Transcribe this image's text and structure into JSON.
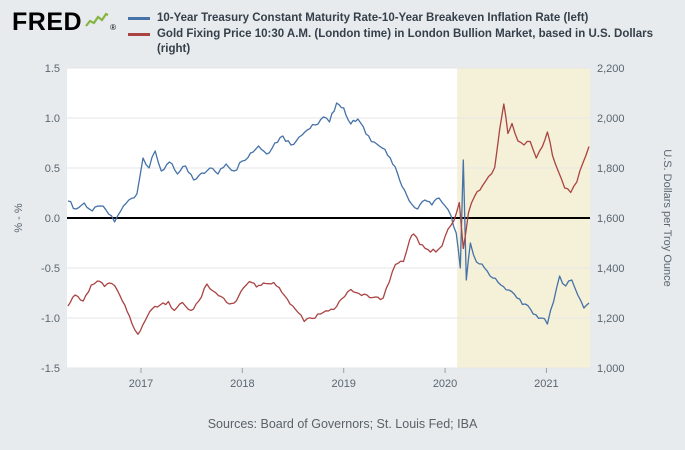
{
  "header": {
    "logo_text": "FRED",
    "registered_mark": "®"
  },
  "footer": {
    "sources": "Sources: Board of Governors; St. Louis Fed; IBA"
  },
  "chart_data": {
    "type": "line",
    "x_range": [
      2016.27,
      2021.43
    ],
    "x_ticks": {
      "values": [
        2017,
        2018,
        2019,
        2020,
        2021
      ],
      "labels": [
        "2017",
        "2018",
        "2019",
        "2020",
        "2021"
      ]
    },
    "left_axis": {
      "label": "% - %",
      "min": -1.5,
      "max": 1.5,
      "tick_values": [
        1.5,
        1.0,
        0.5,
        0.0,
        -0.5,
        -1.0,
        -1.5
      ],
      "tick_labels": [
        "1.5",
        "1.0",
        "0.5",
        "0.0",
        "-0.5",
        "-1.0",
        "-1.5"
      ]
    },
    "right_axis": {
      "label": "U.S. Dollars per Troy Ounce",
      "min": 1000,
      "max": 2200,
      "tick_values": [
        2200,
        2000,
        1800,
        1600,
        1400,
        1200,
        1000
      ],
      "tick_labels": [
        "2,200",
        "2,000",
        "1,800",
        "1,600",
        "1,400",
        "1,200",
        "1,000"
      ]
    },
    "grid": true,
    "legend_position": "top",
    "zero_line": {
      "value": 0
    },
    "highlight_region": {
      "x_start": 2020.12,
      "x_end": 2021.43,
      "color": "#f5f0d8"
    },
    "colors": {
      "page_bg": "#e7ebee",
      "plot_bg": "#ffffff",
      "grid": "#e6e6e6",
      "zero_line": "#000000"
    },
    "series": [
      {
        "id": "treasury-breakeven-spread",
        "name": "10-Year Treasury Constant Maturity Rate-10-Year Breakeven Inflation Rate (left)",
        "axis": "left",
        "color": "#4572a7",
        "points": [
          [
            2016.28,
            0.17
          ],
          [
            2016.36,
            0.09
          ],
          [
            2016.44,
            0.15
          ],
          [
            2016.52,
            0.07
          ],
          [
            2016.6,
            0.12
          ],
          [
            2016.68,
            0.04
          ],
          [
            2016.74,
            -0.04
          ],
          [
            2016.8,
            0.07
          ],
          [
            2016.88,
            0.18
          ],
          [
            2016.96,
            0.24
          ],
          [
            2017.02,
            0.6
          ],
          [
            2017.08,
            0.5
          ],
          [
            2017.14,
            0.67
          ],
          [
            2017.2,
            0.47
          ],
          [
            2017.28,
            0.56
          ],
          [
            2017.36,
            0.44
          ],
          [
            2017.44,
            0.52
          ],
          [
            2017.52,
            0.38
          ],
          [
            2017.6,
            0.45
          ],
          [
            2017.68,
            0.5
          ],
          [
            2017.76,
            0.44
          ],
          [
            2017.84,
            0.54
          ],
          [
            2017.92,
            0.47
          ],
          [
            2018.0,
            0.57
          ],
          [
            2018.08,
            0.65
          ],
          [
            2018.16,
            0.72
          ],
          [
            2018.24,
            0.64
          ],
          [
            2018.32,
            0.75
          ],
          [
            2018.4,
            0.82
          ],
          [
            2018.48,
            0.73
          ],
          [
            2018.56,
            0.81
          ],
          [
            2018.64,
            0.88
          ],
          [
            2018.72,
            0.93
          ],
          [
            2018.8,
            1.01
          ],
          [
            2018.86,
            0.96
          ],
          [
            2018.93,
            1.15
          ],
          [
            2019.0,
            1.1
          ],
          [
            2019.07,
            0.94
          ],
          [
            2019.14,
            0.99
          ],
          [
            2019.22,
            0.84
          ],
          [
            2019.3,
            0.76
          ],
          [
            2019.38,
            0.7
          ],
          [
            2019.46,
            0.6
          ],
          [
            2019.53,
            0.45
          ],
          [
            2019.6,
            0.28
          ],
          [
            2019.67,
            0.14
          ],
          [
            2019.73,
            0.09
          ],
          [
            2019.8,
            0.18
          ],
          [
            2019.87,
            0.13
          ],
          [
            2019.94,
            0.2
          ],
          [
            2020.0,
            0.12
          ],
          [
            2020.06,
            0.02
          ],
          [
            2020.11,
            -0.15
          ],
          [
            2020.15,
            -0.5
          ],
          [
            2020.18,
            0.58
          ],
          [
            2020.21,
            -0.62
          ],
          [
            2020.25,
            -0.25
          ],
          [
            2020.31,
            -0.44
          ],
          [
            2020.39,
            -0.5
          ],
          [
            2020.47,
            -0.6
          ],
          [
            2020.55,
            -0.67
          ],
          [
            2020.63,
            -0.72
          ],
          [
            2020.71,
            -0.8
          ],
          [
            2020.79,
            -0.86
          ],
          [
            2020.87,
            -0.96
          ],
          [
            2020.95,
            -1.0
          ],
          [
            2021.01,
            -1.06
          ],
          [
            2021.07,
            -0.84
          ],
          [
            2021.13,
            -0.58
          ],
          [
            2021.19,
            -0.68
          ],
          [
            2021.25,
            -0.62
          ],
          [
            2021.31,
            -0.77
          ],
          [
            2021.37,
            -0.9
          ],
          [
            2021.42,
            -0.85
          ]
        ]
      },
      {
        "id": "gold-price",
        "name": "Gold Fixing Price 10:30 A.M. (London time) in London Bullion Market, based in U.S. Dollars (right)",
        "axis": "right",
        "color": "#a94442",
        "points": [
          [
            2016.28,
            1248
          ],
          [
            2016.35,
            1292
          ],
          [
            2016.43,
            1268
          ],
          [
            2016.51,
            1332
          ],
          [
            2016.57,
            1348
          ],
          [
            2016.64,
            1326
          ],
          [
            2016.71,
            1338
          ],
          [
            2016.77,
            1308
          ],
          [
            2016.84,
            1252
          ],
          [
            2016.91,
            1178
          ],
          [
            2016.97,
            1135
          ],
          [
            2017.04,
            1188
          ],
          [
            2017.11,
            1236
          ],
          [
            2017.19,
            1252
          ],
          [
            2017.27,
            1266
          ],
          [
            2017.33,
            1230
          ],
          [
            2017.41,
            1262
          ],
          [
            2017.49,
            1230
          ],
          [
            2017.57,
            1268
          ],
          [
            2017.65,
            1336
          ],
          [
            2017.71,
            1308
          ],
          [
            2017.79,
            1286
          ],
          [
            2017.87,
            1256
          ],
          [
            2017.94,
            1268
          ],
          [
            2018.01,
            1320
          ],
          [
            2018.07,
            1346
          ],
          [
            2018.14,
            1324
          ],
          [
            2018.23,
            1338
          ],
          [
            2018.31,
            1342
          ],
          [
            2018.39,
            1302
          ],
          [
            2018.47,
            1256
          ],
          [
            2018.55,
            1222
          ],
          [
            2018.61,
            1186
          ],
          [
            2018.69,
            1198
          ],
          [
            2018.77,
            1216
          ],
          [
            2018.85,
            1228
          ],
          [
            2018.93,
            1246
          ],
          [
            2019.01,
            1286
          ],
          [
            2019.07,
            1314
          ],
          [
            2019.15,
            1298
          ],
          [
            2019.23,
            1292
          ],
          [
            2019.31,
            1284
          ],
          [
            2019.39,
            1280
          ],
          [
            2019.45,
            1344
          ],
          [
            2019.51,
            1414
          ],
          [
            2019.59,
            1426
          ],
          [
            2019.65,
            1512
          ],
          [
            2019.69,
            1536
          ],
          [
            2019.75,
            1494
          ],
          [
            2019.83,
            1474
          ],
          [
            2019.91,
            1464
          ],
          [
            2019.97,
            1488
          ],
          [
            2020.03,
            1556
          ],
          [
            2020.09,
            1592
          ],
          [
            2020.14,
            1662
          ],
          [
            2020.18,
            1478
          ],
          [
            2020.23,
            1620
          ],
          [
            2020.29,
            1686
          ],
          [
            2020.37,
            1730
          ],
          [
            2020.43,
            1766
          ],
          [
            2020.49,
            1802
          ],
          [
            2020.54,
            1958
          ],
          [
            2020.58,
            2056
          ],
          [
            2020.62,
            1938
          ],
          [
            2020.66,
            1978
          ],
          [
            2020.72,
            1908
          ],
          [
            2020.78,
            1892
          ],
          [
            2020.84,
            1906
          ],
          [
            2020.9,
            1840
          ],
          [
            2020.96,
            1886
          ],
          [
            2021.01,
            1944
          ],
          [
            2021.06,
            1850
          ],
          [
            2021.12,
            1784
          ],
          [
            2021.18,
            1720
          ],
          [
            2021.24,
            1702
          ],
          [
            2021.3,
            1744
          ],
          [
            2021.36,
            1820
          ],
          [
            2021.42,
            1886
          ]
        ]
      }
    ]
  }
}
